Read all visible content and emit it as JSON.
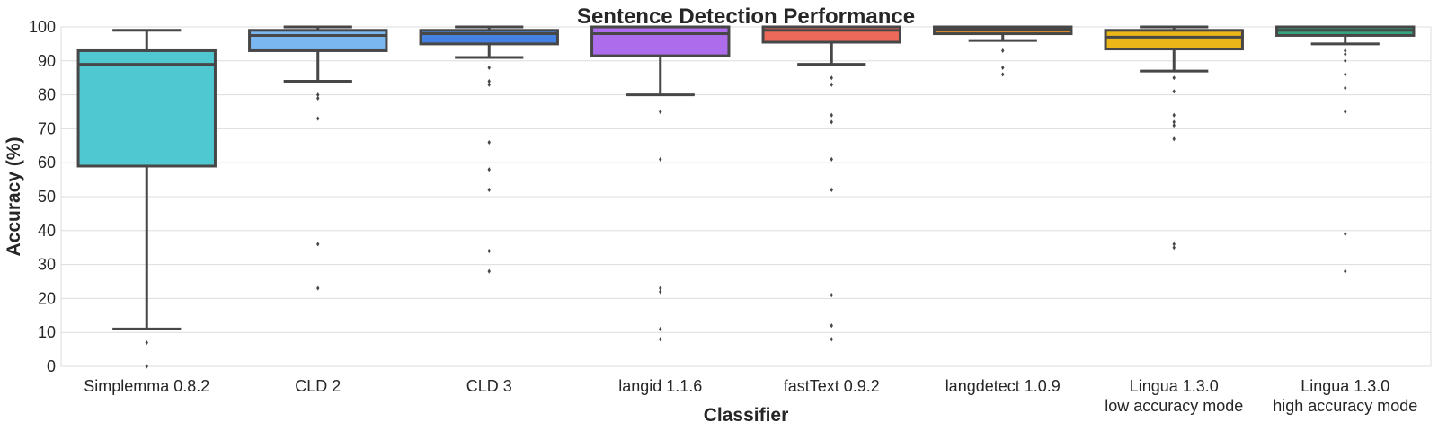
{
  "chart_data": {
    "type": "box",
    "title": "Sentence Detection Performance",
    "xlabel": "Classifier",
    "ylabel": "Accuracy (%)",
    "ylim": [
      0,
      100
    ],
    "yticks": [
      0,
      10,
      20,
      30,
      40,
      50,
      60,
      70,
      80,
      90,
      100
    ],
    "grid": "horizontal",
    "series": [
      {
        "label_lines": [
          "Simplemma 0.8.2"
        ],
        "color": "#4fc8d2",
        "q1": 59,
        "median": 89,
        "q3": 93,
        "whisker_low": 11,
        "whisker_high": 99,
        "outliers": [
          7,
          0
        ]
      },
      {
        "label_lines": [
          "CLD 2"
        ],
        "color": "#7ab6ef",
        "q1": 93,
        "median": 97.5,
        "q3": 99,
        "whisker_low": 84,
        "whisker_high": 100,
        "outliers": [
          80,
          79,
          73,
          36,
          23
        ]
      },
      {
        "label_lines": [
          "CLD 3"
        ],
        "color": "#4481e0",
        "q1": 95,
        "median": 98,
        "q3": 99,
        "whisker_low": 91,
        "whisker_high": 100,
        "outliers": [
          88,
          84,
          83,
          66,
          58,
          52,
          34,
          28
        ]
      },
      {
        "label_lines": [
          "langid 1.1.6"
        ],
        "color": "#ad6ceb",
        "q1": 91.5,
        "median": 98,
        "q3": 100,
        "whisker_low": 80,
        "whisker_high": 100,
        "outliers": [
          75,
          61,
          23,
          22,
          11,
          8
        ]
      },
      {
        "label_lines": [
          "fastText 0.9.2"
        ],
        "color": "#ed6a5a",
        "q1": 95.5,
        "median": 99,
        "q3": 100,
        "whisker_low": 89,
        "whisker_high": 100,
        "outliers": [
          85,
          83,
          74,
          72,
          61,
          52,
          21,
          12,
          8
        ]
      },
      {
        "label_lines": [
          "langdetect 1.0.9"
        ],
        "color": "#d88b2e",
        "q1": 98,
        "median": 99.3,
        "q3": 100,
        "whisker_low": 96,
        "whisker_high": 100,
        "outliers": [
          93,
          88,
          86
        ]
      },
      {
        "label_lines": [
          "Lingua 1.3.0",
          "low accuracy mode"
        ],
        "color": "#ebb618",
        "q1": 93.5,
        "median": 97,
        "q3": 99,
        "whisker_low": 87,
        "whisker_high": 100,
        "outliers": [
          85,
          81,
          74,
          72,
          71,
          67,
          36,
          35
        ]
      },
      {
        "label_lines": [
          "Lingua 1.3.0",
          "high accuracy mode"
        ],
        "color": "#35a77f",
        "q1": 97.5,
        "median": 99,
        "q3": 100,
        "whisker_low": 95,
        "whisker_high": 100,
        "outliers": [
          93,
          92,
          90,
          86,
          82,
          75,
          39,
          28
        ]
      }
    ]
  }
}
